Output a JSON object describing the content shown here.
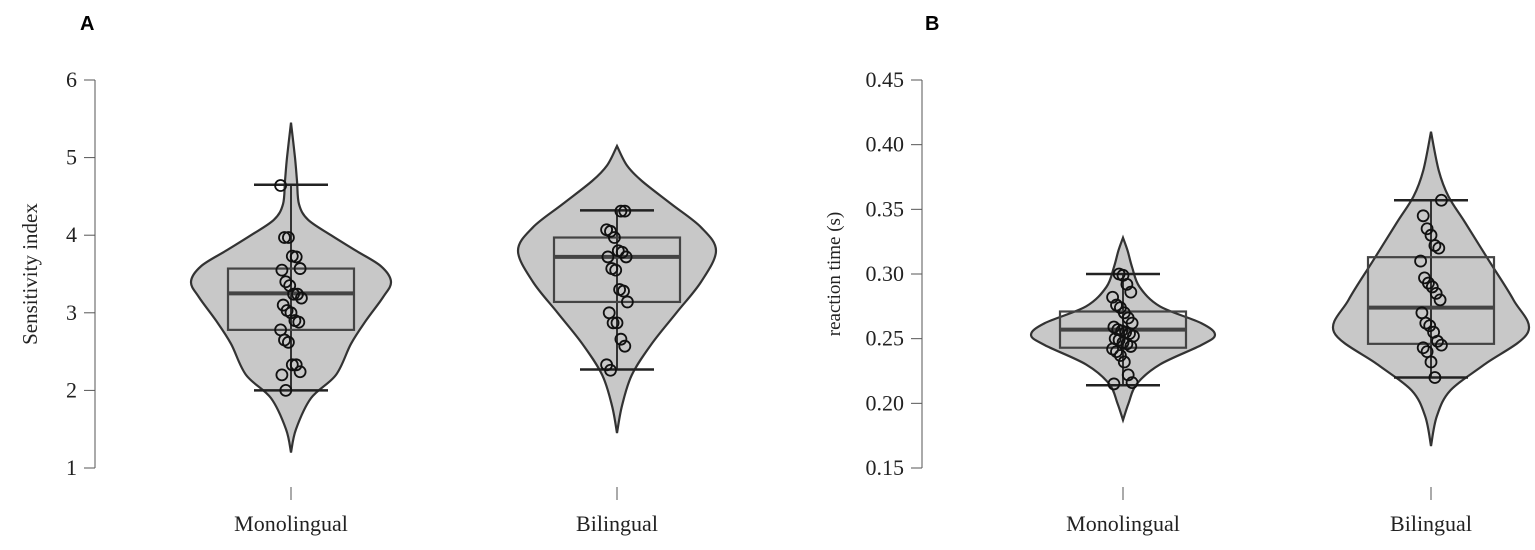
{
  "chart_data": [
    {
      "panel": "A",
      "type": "violin",
      "ylabel": "Sensitivity index",
      "xlabel": "",
      "ylim": [
        1,
        6
      ],
      "yticks": [
        "1",
        "2",
        "3",
        "4",
        "5",
        "6"
      ],
      "categories": [
        "Monolingual",
        "Bilingual"
      ],
      "groups": [
        {
          "category": "Monolingual",
          "box": {
            "whisker_low": 2.0,
            "q1": 2.78,
            "median": 3.25,
            "q3": 3.57,
            "whisker_high": 4.65
          },
          "density": [
            [
              1.2,
              0
            ],
            [
              1.5,
              0.05
            ],
            [
              1.9,
              0.2
            ],
            [
              2.2,
              0.45
            ],
            [
              2.6,
              0.6
            ],
            [
              2.9,
              0.75
            ],
            [
              3.2,
              0.92
            ],
            [
              3.4,
              1
            ],
            [
              3.6,
              0.9
            ],
            [
              3.8,
              0.65
            ],
            [
              4.0,
              0.4
            ],
            [
              4.2,
              0.17
            ],
            [
              4.4,
              0.08
            ],
            [
              4.7,
              0.06
            ],
            [
              5.0,
              0.04
            ],
            [
              5.45,
              0
            ]
          ],
          "points": [
            4.64,
            3.97,
            3.97,
            3.73,
            3.72,
            3.57,
            3.55,
            3.4,
            3.35,
            3.24,
            3.24,
            3.19,
            3.1,
            3.03,
            3.0,
            2.9,
            2.88,
            2.78,
            2.65,
            2.62,
            2.33,
            2.33,
            2.24,
            2.2,
            2.0
          ]
        },
        {
          "category": "Bilingual",
          "box": {
            "whisker_low": 2.27,
            "q1": 3.14,
            "median": 3.72,
            "q3": 3.97,
            "whisker_high": 4.32
          },
          "density": [
            [
              1.45,
              0
            ],
            [
              1.8,
              0.05
            ],
            [
              2.2,
              0.15
            ],
            [
              2.6,
              0.35
            ],
            [
              3.0,
              0.6
            ],
            [
              3.4,
              0.85
            ],
            [
              3.8,
              1
            ],
            [
              4.1,
              0.85
            ],
            [
              4.4,
              0.55
            ],
            [
              4.7,
              0.25
            ],
            [
              4.9,
              0.1
            ],
            [
              5.15,
              0
            ]
          ],
          "points": [
            4.31,
            4.31,
            4.07,
            4.05,
            3.97,
            3.8,
            3.78,
            3.72,
            3.72,
            3.57,
            3.55,
            3.3,
            3.28,
            3.14,
            3.0,
            2.87,
            2.87,
            2.66,
            2.57,
            2.33,
            2.26
          ]
        }
      ]
    },
    {
      "panel": "B",
      "type": "violin",
      "ylabel": "reaction time (s)",
      "xlabel": "",
      "ylim": [
        0.15,
        0.45
      ],
      "yticks": [
        "0.15",
        "0.20",
        "0.25",
        "0.30",
        "0.35",
        "0.40",
        "0.45"
      ],
      "categories": [
        "Monolingual",
        "Bilingual"
      ],
      "groups": [
        {
          "category": "Monolingual",
          "box": {
            "whisker_low": 0.214,
            "q1": 0.243,
            "median": 0.257,
            "q3": 0.271,
            "whisker_high": 0.3
          },
          "density": [
            [
              0.187,
              0
            ],
            [
              0.2,
              0.06
            ],
            [
              0.215,
              0.15
            ],
            [
              0.23,
              0.4
            ],
            [
              0.245,
              0.85
            ],
            [
              0.253,
              1
            ],
            [
              0.262,
              0.85
            ],
            [
              0.275,
              0.4
            ],
            [
              0.29,
              0.18
            ],
            [
              0.305,
              0.1
            ],
            [
              0.318,
              0.05
            ],
            [
              0.328,
              0
            ]
          ],
          "points": [
            0.3,
            0.299,
            0.292,
            0.286,
            0.282,
            0.276,
            0.274,
            0.27,
            0.266,
            0.262,
            0.259,
            0.257,
            0.256,
            0.255,
            0.254,
            0.252,
            0.25,
            0.249,
            0.247,
            0.246,
            0.244,
            0.242,
            0.24,
            0.237,
            0.232,
            0.222,
            0.216,
            0.215
          ]
        },
        {
          "category": "Bilingual",
          "box": {
            "whisker_low": 0.22,
            "q1": 0.246,
            "median": 0.274,
            "q3": 0.313,
            "whisker_high": 0.357
          },
          "density": [
            [
              0.167,
              0
            ],
            [
              0.19,
              0.06
            ],
            [
              0.21,
              0.2
            ],
            [
              0.23,
              0.55
            ],
            [
              0.255,
              1
            ],
            [
              0.28,
              0.85
            ],
            [
              0.31,
              0.6
            ],
            [
              0.34,
              0.35
            ],
            [
              0.36,
              0.18
            ],
            [
              0.38,
              0.08
            ],
            [
              0.41,
              0
            ]
          ],
          "points": [
            0.357,
            0.345,
            0.335,
            0.33,
            0.322,
            0.32,
            0.31,
            0.297,
            0.293,
            0.29,
            0.285,
            0.28,
            0.27,
            0.262,
            0.26,
            0.255,
            0.248,
            0.245,
            0.243,
            0.24,
            0.232,
            0.22
          ]
        }
      ]
    }
  ],
  "colors": {
    "violin_fill": "#c8c8c8",
    "stroke": "#333333",
    "point_stroke": "#111111"
  }
}
